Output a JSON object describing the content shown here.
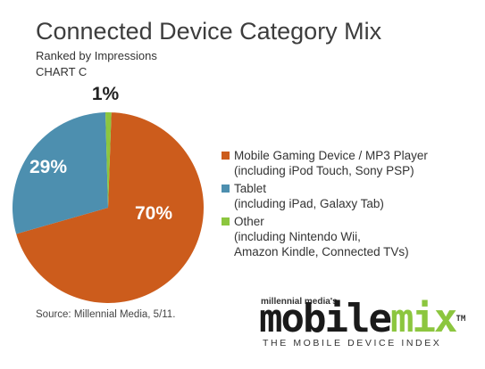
{
  "chart_data": {
    "type": "pie",
    "title": "Connected Device Category Mix",
    "subtitle": "Ranked by Impressions",
    "chart_label": "CHART C",
    "slices": [
      {
        "label_lines": [
          "Mobile Gaming Device / MP3 Player",
          "(including iPod Touch, Sony PSP)"
        ],
        "value": 70,
        "display": "70%",
        "color": "#cc5c1c"
      },
      {
        "label_lines": [
          "Tablet",
          "(including iPad, Galaxy Tab)"
        ],
        "value": 29,
        "display": "29%",
        "color": "#4d8faf"
      },
      {
        "label_lines": [
          "Other",
          "(including Nintendo Wii,",
          "Amazon Kindle, Connected TVs)"
        ],
        "value": 1,
        "display": "1%",
        "color": "#8cc63f"
      }
    ],
    "legend_position": "right"
  },
  "source": "Source: Millennial Media, 5/11.",
  "brand": {
    "top": "millennial media's",
    "mobile": "mobile",
    "mix": "mix",
    "tm": "TM",
    "tagline": "THE MOBILE DEVICE INDEX"
  }
}
